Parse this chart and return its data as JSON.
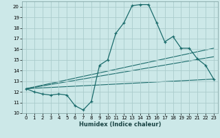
{
  "background_color": "#cce8e8",
  "grid_color": "#aacccc",
  "line_color": "#1a6b6b",
  "xlabel": "Humidex (Indice chaleur)",
  "ylim": [
    10,
    20.5
  ],
  "xlim": [
    -0.5,
    23.5
  ],
  "yticks": [
    10,
    11,
    12,
    13,
    14,
    15,
    16,
    17,
    18,
    19,
    20
  ],
  "xticks": [
    0,
    1,
    2,
    3,
    4,
    5,
    6,
    7,
    8,
    9,
    10,
    11,
    12,
    13,
    14,
    15,
    16,
    17,
    18,
    19,
    20,
    21,
    22,
    23
  ],
  "line1_x": [
    0,
    1,
    2,
    3,
    4,
    5,
    6,
    7,
    8,
    9,
    10,
    11,
    12,
    13,
    14,
    15,
    16,
    17,
    18,
    19,
    20,
    21,
    22,
    23
  ],
  "line1_y": [
    12.3,
    12.0,
    11.8,
    11.7,
    11.8,
    11.7,
    10.7,
    10.3,
    11.1,
    14.5,
    15.0,
    17.5,
    18.5,
    20.1,
    20.2,
    20.2,
    18.5,
    16.7,
    17.2,
    16.1,
    16.1,
    15.1,
    14.5,
    13.2
  ],
  "line2_x": [
    0,
    23
  ],
  "line2_y": [
    12.3,
    16.1
  ],
  "line3_x": [
    0,
    23
  ],
  "line3_y": [
    12.3,
    15.3
  ],
  "line4_x": [
    0,
    23
  ],
  "line4_y": [
    12.3,
    13.2
  ]
}
